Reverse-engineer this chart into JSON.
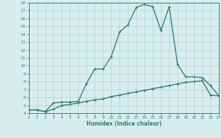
{
  "xlabel": "Humidex (Indice chaleur)",
  "x": [
    0,
    1,
    2,
    3,
    4,
    5,
    6,
    7,
    8,
    9,
    10,
    11,
    12,
    13,
    14,
    15,
    16,
    17,
    18,
    19,
    20,
    21,
    22,
    23
  ],
  "line1_y": [
    4.4,
    4.4,
    4.2,
    5.3,
    5.4,
    5.4,
    5.5,
    7.8,
    9.6,
    9.6,
    11.2,
    14.3,
    15.2,
    17.4,
    17.8,
    17.5,
    14.5,
    17.5,
    10.2,
    8.6,
    8.6,
    8.5,
    7.5,
    6.2
  ],
  "line2_y": [
    4.4,
    4.4,
    4.2,
    4.5,
    5.0,
    5.1,
    5.3,
    5.5,
    5.7,
    5.8,
    6.1,
    6.3,
    6.5,
    6.7,
    6.9,
    7.1,
    7.3,
    7.5,
    7.7,
    7.9,
    8.0,
    8.1,
    6.3,
    6.2
  ],
  "line_color": "#2e7d72",
  "bg_color": "#d8eeec",
  "grid_color": "#b0d0cc",
  "ylim": [
    4,
    18
  ],
  "xlim": [
    0,
    23
  ],
  "yticks": [
    4,
    5,
    6,
    7,
    8,
    9,
    10,
    11,
    12,
    13,
    14,
    15,
    16,
    17,
    18
  ],
  "xticks": [
    0,
    1,
    2,
    3,
    4,
    5,
    6,
    7,
    8,
    9,
    10,
    11,
    12,
    13,
    14,
    15,
    16,
    17,
    18,
    19,
    20,
    21,
    22,
    23
  ],
  "marker": "+",
  "linewidth": 1.0,
  "markersize": 3.5
}
